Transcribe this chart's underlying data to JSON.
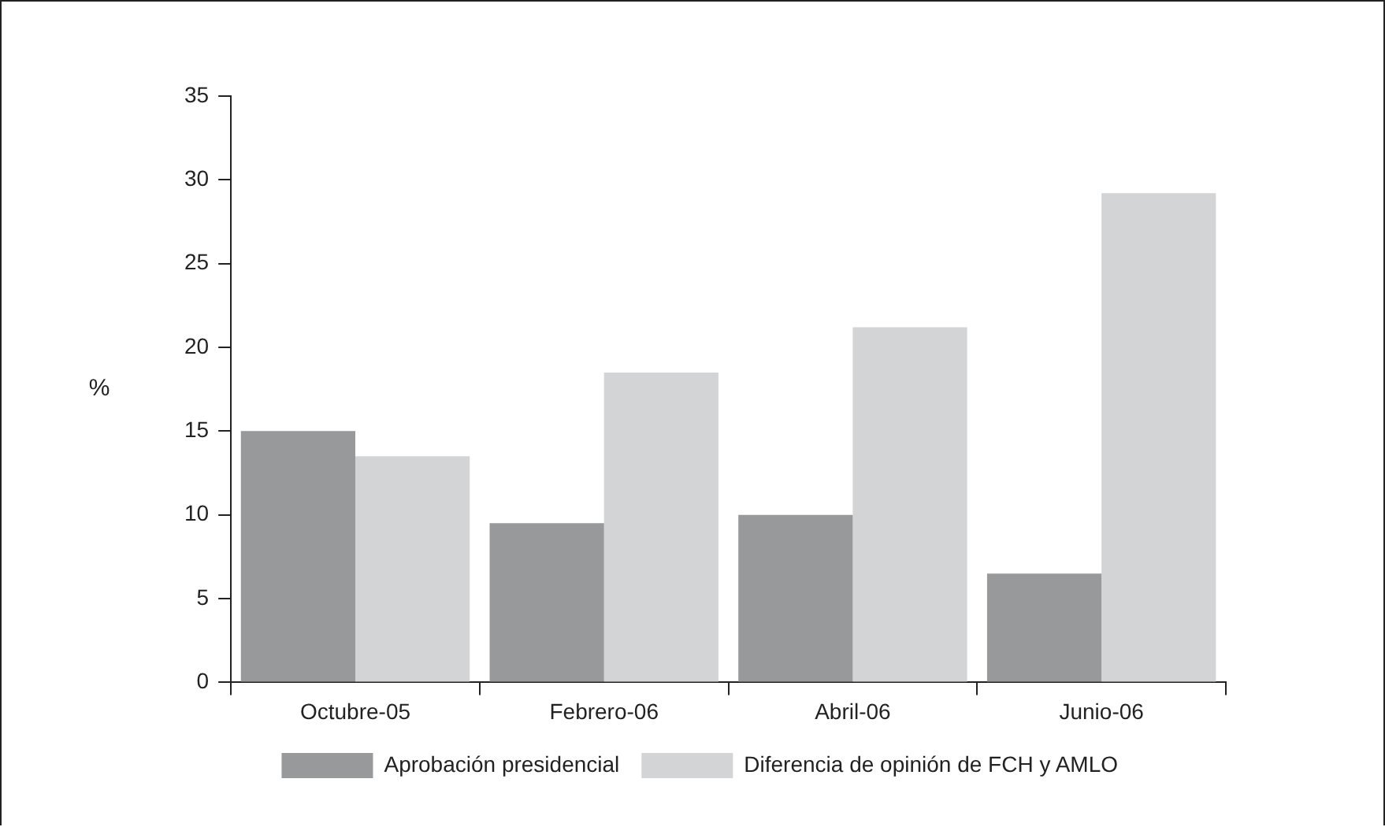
{
  "chart_data": {
    "type": "bar",
    "ylabel": "%",
    "categories": [
      "Octubre-05",
      "Febrero-06",
      "Abril-06",
      "Junio-06"
    ],
    "series": [
      {
        "name": "Aprobación presidencial",
        "color": "#98999b",
        "values": [
          15,
          9.5,
          10,
          6.5
        ]
      },
      {
        "name": "Diferencia de opinión de FCH y AMLO",
        "color": "#d3d4d6",
        "values": [
          13.5,
          18.5,
          21.2,
          29.2
        ]
      }
    ],
    "ylim": [
      0,
      35
    ],
    "yticks": [
      0,
      5,
      10,
      15,
      20,
      25,
      30,
      35
    ],
    "grid": false,
    "legend": "bottom"
  }
}
